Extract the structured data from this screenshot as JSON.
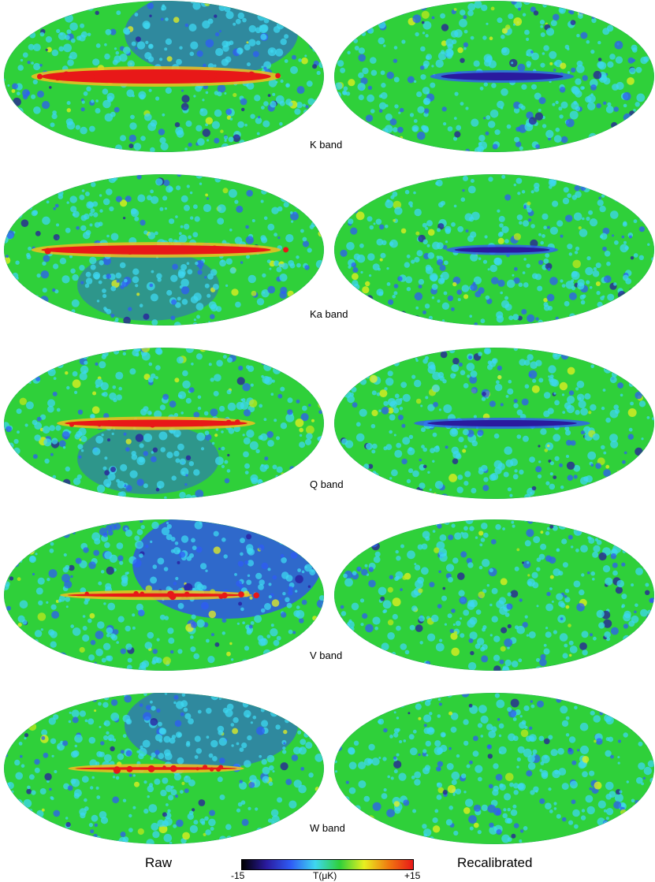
{
  "bands": [
    {
      "label": "K band",
      "raw": {
        "base": "#2fd03a",
        "plane": "hot",
        "plane_extent": 0.78,
        "plane_thickness": 1.0,
        "blob": "cold-upper-right",
        "speckle": "#3c6ff0"
      },
      "recal": {
        "base": "#2fd03a",
        "plane": "cold",
        "plane_extent": 0.45,
        "plane_thickness": 0.55,
        "blob": "none",
        "speckle": "#3c6ff0"
      }
    },
    {
      "label": "Ka band",
      "raw": {
        "base": "#2fd03a",
        "plane": "hot",
        "plane_extent": 0.78,
        "plane_thickness": 0.65,
        "blob": "cold-lower-middle",
        "speckle": "#3c6ff0"
      },
      "recal": {
        "base": "#2fd03a",
        "plane": "cold",
        "plane_extent": 0.35,
        "plane_thickness": 0.4,
        "blob": "none",
        "speckle": "#3c6ff0"
      }
    },
    {
      "label": "Q band",
      "raw": {
        "base": "#2fd03a",
        "plane": "hot",
        "plane_extent": 0.62,
        "plane_thickness": 0.5,
        "blob": "cold-lower-middle",
        "speckle": "#3c6ff0"
      },
      "recal": {
        "base": "#2fd03a",
        "plane": "cold",
        "plane_extent": 0.55,
        "plane_thickness": 0.45,
        "blob": "none",
        "speckle": "#3c6ff0"
      }
    },
    {
      "label": "V band",
      "raw": {
        "base": "#2fd03a",
        "plane": "hot-thin",
        "plane_extent": 0.6,
        "plane_thickness": 0.25,
        "blob": "cold-upper-right-strong",
        "speckle": "#3c6ff0"
      },
      "recal": {
        "base": "#2fd03a",
        "plane": "none",
        "plane_extent": 0,
        "plane_thickness": 0,
        "blob": "none",
        "speckle": "#3c6ff0"
      }
    },
    {
      "label": "W band",
      "raw": {
        "base": "#2fd03a",
        "plane": "hot-thin",
        "plane_extent": 0.55,
        "plane_thickness": 0.2,
        "blob": "cold-upper-right",
        "speckle": "#3c6ff0"
      },
      "recal": {
        "base": "#2fd03a",
        "plane": "none",
        "plane_extent": 0,
        "plane_thickness": 0,
        "blob": "none",
        "speckle": "#3c6ff0"
      }
    }
  ],
  "columns": {
    "left": "Raw",
    "right": "Recalibrated"
  },
  "colorbar": {
    "min_label": "-15",
    "mid_label": "T(μK)",
    "max_label": "+15",
    "stops": [
      "#000000",
      "#2a1a9e",
      "#2f5cf5",
      "#3ed7f0",
      "#2fd03a",
      "#e8f020",
      "#f07a10",
      "#e81818"
    ]
  }
}
